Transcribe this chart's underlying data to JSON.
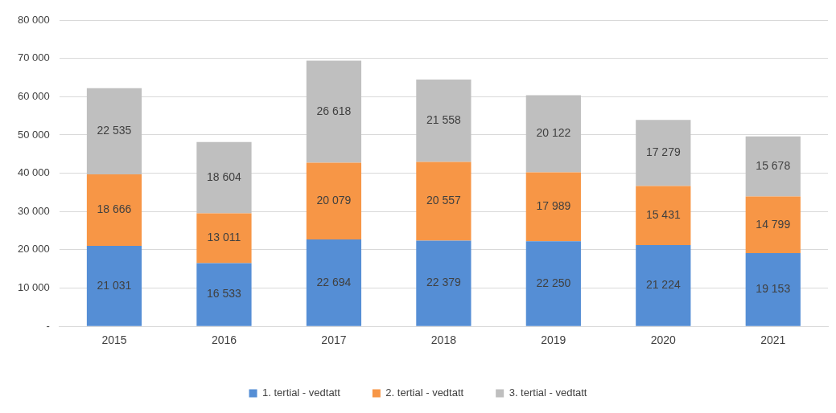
{
  "chart_data": {
    "type": "bar",
    "stacked": true,
    "categories": [
      "2015",
      "2016",
      "2017",
      "2018",
      "2019",
      "2020",
      "2021"
    ],
    "series": [
      {
        "name": "1. tertial - vedtatt",
        "color": "#558ed5",
        "values": [
          21031,
          16533,
          22694,
          22379,
          22250,
          21224,
          19153
        ],
        "value_labels": [
          "21 031",
          "16 533",
          "22 694",
          "22 379",
          "22 250",
          "21 224",
          "19 153"
        ]
      },
      {
        "name": "2. tertial - vedtatt",
        "color": "#f79646",
        "values": [
          18666,
          13011,
          20079,
          20557,
          17989,
          15431,
          14799
        ],
        "value_labels": [
          "18 666",
          "13 011",
          "20 079",
          "20 557",
          "17 989",
          "15 431",
          "14 799"
        ]
      },
      {
        "name": "3. tertial - vedtatt",
        "color": "#bfbfbf",
        "values": [
          22535,
          18604,
          26618,
          21558,
          20122,
          17279,
          15678
        ],
        "value_labels": [
          "22 535",
          "18 604",
          "26 618",
          "21 558",
          "20 122",
          "17 279",
          "15 678"
        ]
      }
    ],
    "ylim": [
      0,
      80000
    ],
    "yticks": [
      {
        "value": 0,
        "label": "-"
      },
      {
        "value": 10000,
        "label": "10 000"
      },
      {
        "value": 20000,
        "label": "20 000"
      },
      {
        "value": 30000,
        "label": "30 000"
      },
      {
        "value": 40000,
        "label": "40 000"
      },
      {
        "value": 50000,
        "label": "50 000"
      },
      {
        "value": 60000,
        "label": "60 000"
      },
      {
        "value": 70000,
        "label": "70 000"
      },
      {
        "value": 80000,
        "label": "80 000"
      }
    ],
    "grid": "y",
    "legend": "bottom"
  }
}
